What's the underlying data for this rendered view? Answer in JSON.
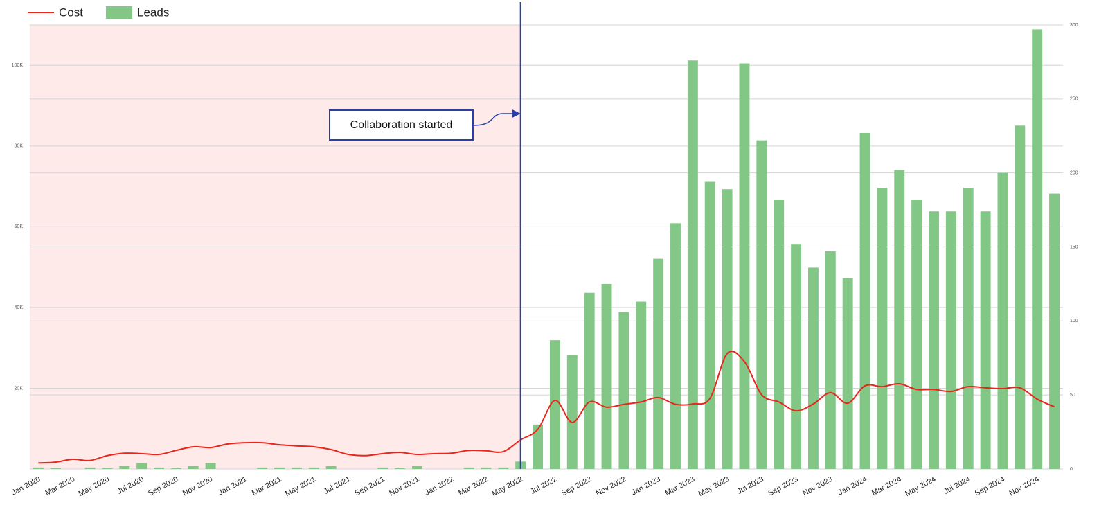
{
  "chart_data": {
    "type": "bar-line",
    "categories": [
      "Jan 2020",
      null,
      "Mar 2020",
      null,
      "May 2020",
      null,
      "Jul 2020",
      null,
      "Sep 2020",
      null,
      "Nov 2020",
      null,
      "Jan 2021",
      null,
      "Mar 2021",
      null,
      "May 2021",
      null,
      "Jul 2021",
      null,
      "Sep 2021",
      null,
      "Nov 2021",
      null,
      "Jan 2022",
      null,
      "Mar 2022",
      null,
      "May 2022",
      null,
      "Jul 2022",
      null,
      "Sep 2022",
      null,
      "Nov 2022",
      null,
      "Jan 2023",
      null,
      "Mar 2023",
      null,
      "May 2023",
      null,
      "Jul 2023",
      null,
      "Sep 2023",
      null,
      "Nov 2023",
      null,
      "Jan 2024",
      null,
      "Mar 2024",
      null,
      "May 2024",
      null,
      "Jul 2024",
      null,
      "Sep 2024",
      null,
      "Nov 2024",
      null
    ],
    "series": [
      {
        "name": "Cost",
        "type": "line",
        "color": "#e8261c",
        "axis": "y",
        "values": [
          1500,
          1700,
          2400,
          2100,
          3300,
          3900,
          3800,
          3600,
          4600,
          5500,
          5300,
          6200,
          6500,
          6500,
          6000,
          5700,
          5500,
          4800,
          3600,
          3300,
          3800,
          4100,
          3600,
          3800,
          3900,
          4600,
          4500,
          4300,
          7200,
          9800,
          17000,
          11500,
          16600,
          15300,
          16000,
          16600,
          17700,
          16000,
          16100,
          17500,
          28600,
          26600,
          18400,
          16600,
          14400,
          16100,
          18900,
          16300,
          20600,
          20400,
          21100,
          19700,
          19700,
          19200,
          20400,
          20100,
          19900,
          20100,
          17300,
          15400
        ]
      },
      {
        "name": "Leads",
        "type": "bar",
        "color": "#82c785",
        "axis": "y2",
        "values": [
          1,
          0.5,
          0,
          1,
          0.5,
          2,
          4,
          1,
          0.5,
          2,
          4,
          0,
          0,
          1,
          1,
          1,
          1,
          2,
          0,
          0,
          1,
          0.5,
          2,
          0,
          0,
          1,
          1,
          1,
          5,
          30,
          87,
          77,
          119,
          125,
          106,
          113,
          142,
          166,
          276,
          194,
          189,
          274,
          222,
          182,
          152,
          136,
          147,
          129,
          227,
          190,
          202,
          182,
          174,
          174,
          190,
          174,
          200,
          232,
          297,
          186
        ]
      }
    ],
    "ylim": [
      0,
      110000
    ],
    "yticks": [
      {
        "value": 20000,
        "label": "20K"
      },
      {
        "value": 40000,
        "label": "40K"
      },
      {
        "value": 60000,
        "label": "60K"
      },
      {
        "value": 80000,
        "label": "80K"
      },
      {
        "value": 100000,
        "label": "100K"
      }
    ],
    "y2lim": [
      0,
      300
    ],
    "y2ticks": [
      0,
      50,
      100,
      150,
      200,
      250,
      300
    ],
    "grid": true,
    "legend": "top-left",
    "annotation": {
      "text": "Collaboration started",
      "x": "May 2022",
      "color": "#2b3ea8",
      "shade": "#ffeaea"
    }
  }
}
